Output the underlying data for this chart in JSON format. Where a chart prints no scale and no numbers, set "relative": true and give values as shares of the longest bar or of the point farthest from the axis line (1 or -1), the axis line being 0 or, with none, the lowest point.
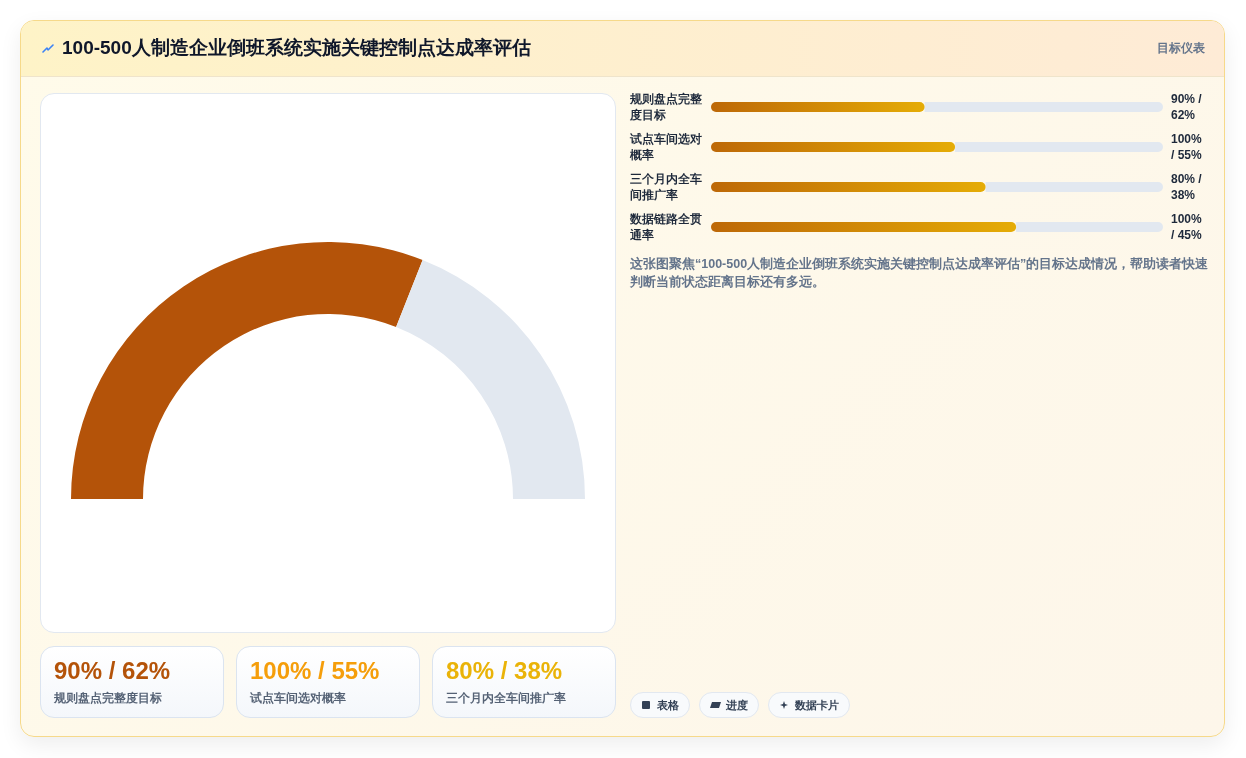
{
  "chart_data": [
    {
      "type": "donut",
      "title": "100-500人制造企业倒班系统实施关键控制点达成率评估",
      "annotations": [
        "目标仪表"
      ],
      "categories": [
        null,
        null
      ],
      "values": [
        62,
        38
      ],
      "colors": [
        "#b45309",
        "#e2e8f0"
      ]
    },
    {
      "type": "bar",
      "orientation": "horizontal",
      "relative": true,
      "categories": [
        "规则盘点完整度目标",
        "试点车间选对概率",
        "三个月内全车间推广率",
        "数据链路全贯通率"
      ],
      "values": [
        0.7,
        0.8,
        0.9,
        1
      ],
      "color": "#d08a0b",
      "annotations": [
        "90% / 62%",
        "100% / 55%",
        "80% / 38%",
        "100% / 45%",
        "这张图聚焦“100-500人制造企业倒班系统实施关键控制点达成率评估”的目标达成情况，帮助读者快速判断当前状态距离目标还有多远。"
      ]
    },
    {
      "type": "other",
      "annotations": [
        "90% / 62%",
        "规则盘点完整度目标",
        "100% / 55%",
        "试点车间选对概率",
        "80% / 38%",
        "三个月内全车间推广率"
      ]
    },
    {
      "type": "other",
      "annotations": [
        "表格",
        "进度",
        "数据卡片"
      ]
    }
  ]
}
